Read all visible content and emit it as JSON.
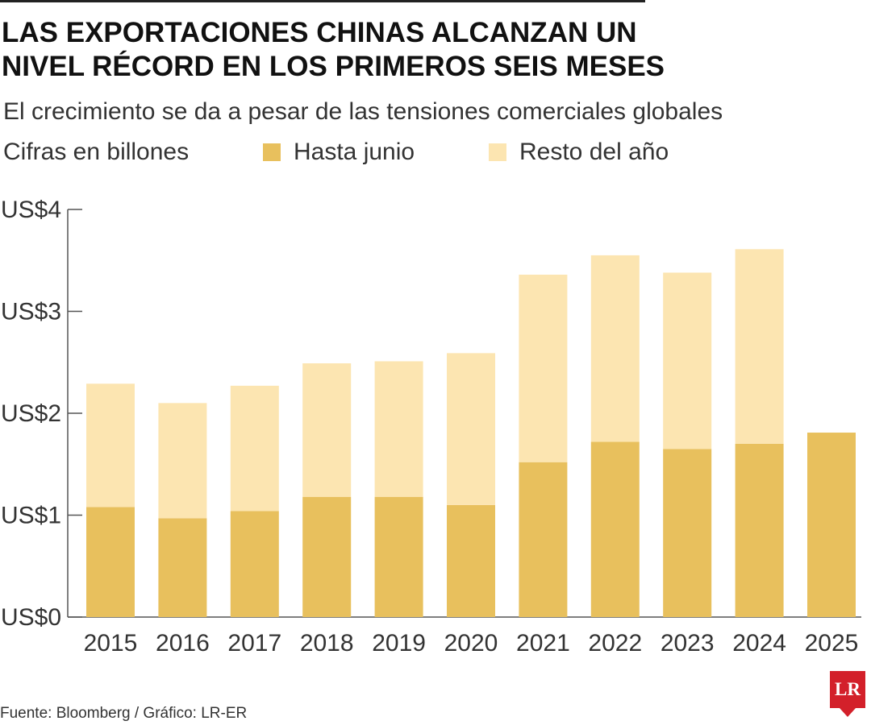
{
  "title_lines": [
    "LAS EXPORTACIONES CHINAS ALCANZAN UN",
    "NIVEL RÉCORD EN LOS PRIMEROS SEIS MESES"
  ],
  "subtitle": "El crecimiento se da a pesar de las tensiones comerciales globales",
  "units": "Cifras en billones",
  "source": "Fuente: Bloomberg / Gráfico: LR-ER",
  "logo_text": "LR",
  "colors": {
    "hasta_junio": "#e8c05d",
    "resto_del_ano": "#fce5b1",
    "axis": "#555555",
    "text": "#333333"
  },
  "chart_data": {
    "type": "bar",
    "stacked": true,
    "title": "LAS EXPORTACIONES CHINAS ALCANZAN UN NIVEL RÉCORD EN LOS PRIMEROS SEIS MESES",
    "categories": [
      "2015",
      "2016",
      "2017",
      "2018",
      "2019",
      "2020",
      "2021",
      "2022",
      "2023",
      "2024",
      "2025"
    ],
    "series": [
      {
        "name": "Hasta junio",
        "values": [
          1.08,
          0.97,
          1.04,
          1.18,
          1.18,
          1.1,
          1.52,
          1.72,
          1.65,
          1.7,
          1.81
        ]
      },
      {
        "name": "Resto del año",
        "values": [
          1.21,
          1.13,
          1.23,
          1.31,
          1.33,
          1.49,
          1.84,
          1.83,
          1.73,
          1.91,
          0
        ]
      }
    ],
    "yticks": [
      "US$0",
      "US$1",
      "US$2",
      "US$3",
      "US$4"
    ],
    "ytick_values": [
      0,
      1,
      2,
      3,
      4
    ],
    "ylim": [
      0,
      4
    ],
    "xlabel": "",
    "ylabel": "",
    "grid": false,
    "legend_position": "top"
  }
}
